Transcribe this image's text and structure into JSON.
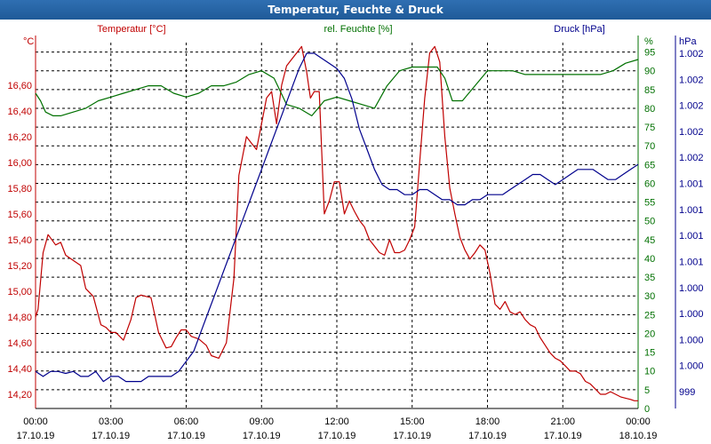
{
  "window": {
    "title": "Temperatur, Feuchte & Druck"
  },
  "chart_data": {
    "type": "line",
    "title": "Temperatur, Feuchte & Druck",
    "x_range_hours": [
      0,
      24
    ],
    "x_ticks": [
      {
        "h": 0,
        "time": "00:00",
        "date": "17.10.19"
      },
      {
        "h": 3,
        "time": "03:00",
        "date": "17.10.19"
      },
      {
        "h": 6,
        "time": "06:00",
        "date": "17.10.19"
      },
      {
        "h": 9,
        "time": "09:00",
        "date": "17.10.19"
      },
      {
        "h": 12,
        "time": "12:00",
        "date": "17.10.19"
      },
      {
        "h": 15,
        "time": "15:00",
        "date": "17.10.19"
      },
      {
        "h": 18,
        "time": "18:00",
        "date": "17.10.19"
      },
      {
        "h": 21,
        "time": "21:00",
        "date": "17.10.19"
      },
      {
        "h": 24,
        "time": "00:00",
        "date": "18.10.19"
      }
    ],
    "grid": true,
    "axes": {
      "temperature": {
        "label": "Temperatur [°C]",
        "unit": "°C",
        "range": [
          14.09,
          16.93
        ],
        "ticks": [
          "14,20",
          "14,40",
          "14,60",
          "14,80",
          "15,00",
          "15,20",
          "15,40",
          "15,60",
          "15,80",
          "16,00",
          "16,20",
          "16,40",
          "16,60"
        ],
        "color": "#c00000"
      },
      "humidity": {
        "label": "rel. Feuchte [%]",
        "unit": "%",
        "range": [
          0,
          97.5
        ],
        "ticks": [
          "0",
          "5",
          "10",
          "15",
          "20",
          "25",
          "30",
          "35",
          "40",
          "45",
          "50",
          "55",
          "60",
          "65",
          "70",
          "75",
          "80",
          "85",
          "90",
          "95"
        ],
        "color": "#007000"
      },
      "pressure": {
        "label": "Druck [hPa]",
        "unit": "hPa",
        "ticks": [
          "999",
          "1.000",
          "1.000",
          "1.000",
          "1.000",
          "1.001",
          "1.001",
          "1.001",
          "1.001",
          "1.002",
          "1.002",
          "1.002",
          "1.002",
          "1.002"
        ],
        "color": "#00008c"
      }
    },
    "series": [
      {
        "name": "Temperatur [°C]",
        "axis": "temperature",
        "color": "#c00000",
        "x": [
          0,
          0.1,
          0.3,
          0.5,
          0.8,
          1.0,
          1.2,
          1.5,
          1.8,
          2.0,
          2.3,
          2.6,
          2.8,
          3.0,
          3.2,
          3.5,
          3.8,
          4.0,
          4.2,
          4.4,
          4.6,
          4.9,
          5.2,
          5.4,
          5.6,
          5.8,
          6.0,
          6.2,
          6.5,
          6.8,
          7.0,
          7.3,
          7.6,
          7.9,
          8.1,
          8.4,
          8.6,
          8.8,
          9.0,
          9.2,
          9.4,
          9.6,
          9.8,
          10.0,
          10.2,
          10.4,
          10.6,
          10.8,
          10.95,
          11.1,
          11.3,
          11.5,
          11.7,
          11.9,
          12.1,
          12.3,
          12.5,
          12.7,
          12.9,
          13.1,
          13.3,
          13.5,
          13.7,
          13.9,
          14.1,
          14.3,
          14.5,
          14.7,
          14.9,
          15.1,
          15.3,
          15.5,
          15.7,
          15.9,
          16.1,
          16.3,
          16.5,
          16.7,
          16.9,
          17.1,
          17.3,
          17.5,
          17.7,
          17.9,
          18.1,
          18.3,
          18.5,
          18.7,
          18.9,
          19.1,
          19.3,
          19.5,
          19.7,
          19.9,
          20.1,
          20.3,
          20.5,
          20.7,
          20.9,
          21.1,
          21.3,
          21.5,
          21.7,
          21.9,
          22.1,
          22.3,
          22.5,
          22.7,
          22.9,
          23.1,
          23.3,
          23.5,
          23.7,
          23.85,
          24.0
        ],
        "values": [
          14.8,
          14.86,
          15.3,
          15.44,
          15.36,
          15.38,
          15.28,
          15.24,
          15.2,
          15.02,
          14.96,
          14.74,
          14.72,
          14.68,
          14.68,
          14.62,
          14.78,
          14.95,
          14.97,
          14.96,
          14.95,
          14.68,
          14.56,
          14.57,
          14.64,
          14.7,
          14.7,
          14.65,
          14.63,
          14.58,
          14.5,
          14.48,
          14.6,
          15.1,
          15.9,
          16.2,
          16.15,
          16.1,
          16.3,
          16.5,
          16.55,
          16.3,
          16.6,
          16.75,
          16.8,
          16.85,
          16.9,
          16.7,
          16.5,
          16.55,
          16.55,
          15.6,
          15.7,
          15.85,
          15.85,
          15.6,
          15.7,
          15.62,
          15.55,
          15.5,
          15.4,
          15.35,
          15.3,
          15.28,
          15.4,
          15.3,
          15.3,
          15.32,
          15.4,
          15.5,
          16.0,
          16.5,
          16.85,
          16.9,
          16.78,
          16.2,
          15.8,
          15.6,
          15.42,
          15.32,
          15.25,
          15.3,
          15.36,
          15.32,
          15.14,
          14.9,
          14.86,
          14.92,
          14.84,
          14.82,
          14.84,
          14.78,
          14.74,
          14.72,
          14.64,
          14.58,
          14.52,
          14.48,
          14.46,
          14.42,
          14.38,
          14.38,
          14.36,
          14.3,
          14.28,
          14.24,
          14.2,
          14.2,
          14.22,
          14.2,
          14.18,
          14.17,
          14.16,
          14.15,
          14.15
        ],
        "note": "digitized estimate"
      },
      {
        "name": "rel. Feuchte [%]",
        "axis": "humidity",
        "color": "#007000",
        "x": [
          0,
          0.2,
          0.4,
          0.7,
          1.0,
          1.5,
          2.0,
          2.5,
          3.0,
          3.5,
          4.0,
          4.5,
          5.0,
          5.5,
          6.0,
          6.5,
          7.0,
          7.5,
          8.0,
          8.5,
          9.0,
          9.5,
          10.0,
          10.5,
          11.0,
          11.5,
          12.0,
          12.5,
          13.0,
          13.5,
          14.0,
          14.5,
          15.0,
          15.5,
          16.0,
          16.3,
          16.6,
          17.0,
          17.5,
          18.0,
          18.5,
          19.0,
          19.5,
          20.0,
          20.5,
          21.0,
          21.5,
          22.0,
          22.5,
          23.0,
          23.5,
          24.0
        ],
        "values": [
          84,
          82,
          79,
          78,
          78,
          79,
          80,
          82,
          83,
          84,
          85,
          86,
          86,
          84,
          83,
          84,
          86,
          86,
          87,
          89,
          90,
          88,
          81,
          80,
          78,
          82,
          83,
          82,
          81,
          80,
          86,
          90,
          91,
          91,
          91,
          88,
          82,
          82,
          86,
          90,
          90,
          90,
          89,
          89,
          89,
          89,
          89,
          89,
          89,
          90,
          92,
          93
        ],
        "note": "digitized estimate"
      },
      {
        "name": "Druck [hPa]",
        "axis": "pressure",
        "color": "#00008c",
        "x": [
          0,
          0.3,
          0.6,
          0.9,
          1.2,
          1.5,
          1.8,
          2.1,
          2.4,
          2.7,
          3.0,
          3.3,
          3.6,
          3.9,
          4.2,
          4.5,
          4.8,
          5.1,
          5.4,
          5.7,
          6.0,
          6.3,
          6.6,
          6.9,
          7.2,
          7.5,
          7.8,
          8.1,
          8.4,
          8.7,
          9.0,
          9.3,
          9.6,
          9.9,
          10.2,
          10.5,
          10.8,
          11.1,
          11.4,
          11.7,
          12.0,
          12.3,
          12.6,
          12.9,
          13.2,
          13.5,
          13.8,
          14.1,
          14.4,
          14.7,
          15.0,
          15.3,
          15.6,
          15.9,
          16.2,
          16.5,
          16.8,
          17.1,
          17.4,
          17.7,
          18.0,
          18.3,
          18.6,
          18.9,
          19.2,
          19.5,
          19.8,
          20.1,
          20.4,
          20.7,
          21.0,
          21.3,
          21.6,
          21.9,
          22.2,
          22.5,
          22.8,
          23.1,
          23.4,
          23.7,
          24.0
        ],
        "values": [
          999.2,
          999.15,
          999.2,
          999.2,
          999.18,
          999.2,
          999.15,
          999.15,
          999.2,
          999.1,
          999.15,
          999.15,
          999.1,
          999.1,
          999.1,
          999.15,
          999.15,
          999.15,
          999.15,
          999.2,
          999.3,
          999.4,
          999.6,
          999.8,
          1000.0,
          1000.2,
          1000.4,
          1000.6,
          1000.8,
          1001.0,
          1001.2,
          1001.4,
          1001.6,
          1001.8,
          1002.0,
          1002.2,
          1002.35,
          1002.35,
          1002.3,
          1002.25,
          1002.2,
          1002.1,
          1001.9,
          1001.6,
          1001.4,
          1001.2,
          1001.05,
          1001.0,
          1001.0,
          1000.95,
          1000.95,
          1001.0,
          1001.0,
          1000.95,
          1000.9,
          1000.9,
          1000.85,
          1000.85,
          1000.9,
          1000.9,
          1000.95,
          1000.95,
          1000.95,
          1001.0,
          1001.05,
          1001.1,
          1001.15,
          1001.15,
          1001.1,
          1001.05,
          1001.1,
          1001.15,
          1001.2,
          1001.2,
          1001.2,
          1001.15,
          1001.1,
          1001.1,
          1001.15,
          1001.2,
          1001.25
        ],
        "note": "digitized estimate, normalized to axis"
      }
    ]
  }
}
